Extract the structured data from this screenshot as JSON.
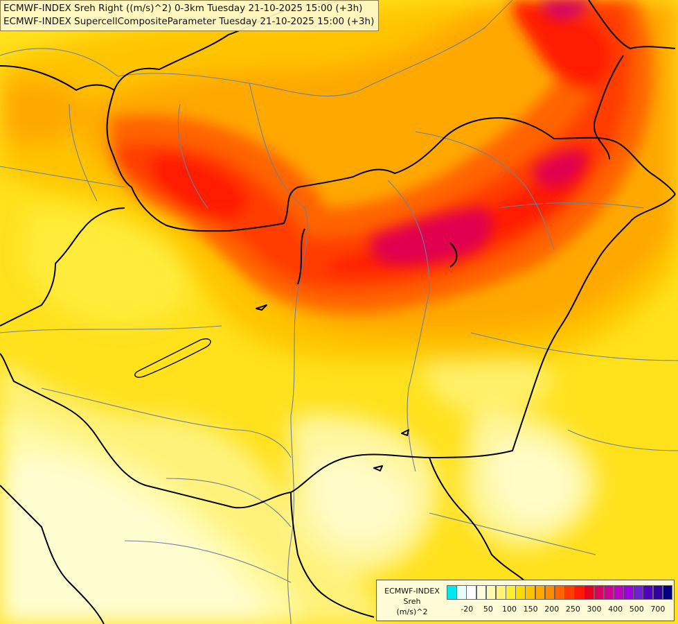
{
  "title": {
    "line1": "ECMWF-INDEX Sreh Right ((m/s)^2) 0-3km Tuesday 21-10-2025 15:00 (+3h)",
    "line2": "ECMWF-INDEX SupercellCompositeParameter Tuesday 21-10-2025 15:00 (+3h)"
  },
  "legend": {
    "source": "ECMWF-INDEX",
    "variable": "Sreh",
    "unit": "(m/s)^2",
    "colors": [
      "#00e8f0",
      "#e8ffff",
      "#ffffff",
      "#fffde0",
      "#fffaaf",
      "#fff37a",
      "#ffee33",
      "#ffdc00",
      "#ffc400",
      "#ffa800",
      "#ff8c00",
      "#ff6400",
      "#ff3c00",
      "#ff1a00",
      "#e80020",
      "#e00060",
      "#d00090",
      "#c000c0",
      "#a000e0",
      "#7020d0",
      "#5000c0",
      "#3000a0",
      "#000080"
    ],
    "ticks": [
      {
        "label": "-20",
        "at": 1
      },
      {
        "label": "50",
        "at": 3
      },
      {
        "label": "100",
        "at": 5
      },
      {
        "label": "150",
        "at": 7
      },
      {
        "label": "200",
        "at": 9
      },
      {
        "label": "250",
        "at": 11
      },
      {
        "label": "300",
        "at": 13
      },
      {
        "label": "400",
        "at": 15
      },
      {
        "label": "500",
        "at": 17
      },
      {
        "label": "700",
        "at": 19
      }
    ]
  }
}
